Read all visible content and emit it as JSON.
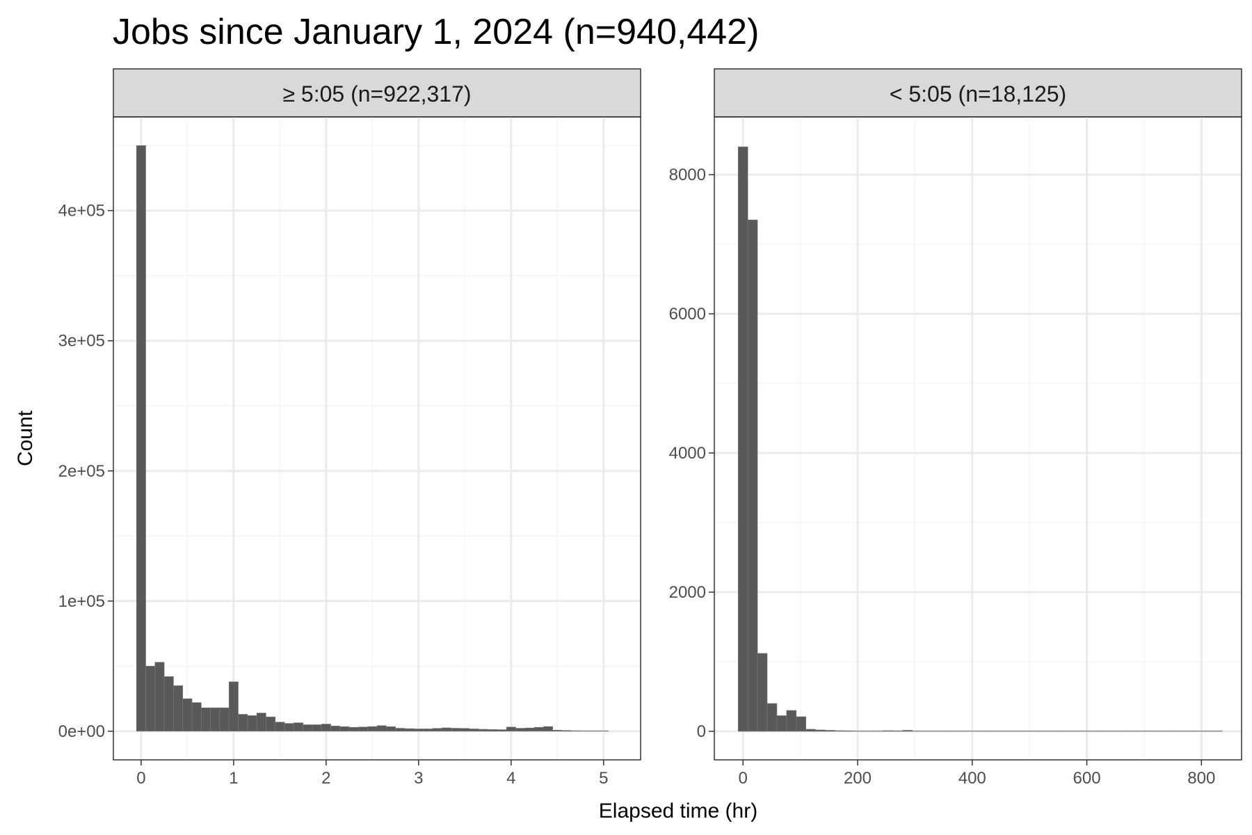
{
  "chart_data": {
    "type": "bar",
    "title": "Jobs since January 1, 2024 (n=940,442)",
    "xlabel": "Elapsed time (hr)",
    "ylabel": "Count",
    "grid": true,
    "panels": [
      {
        "strip": "≥ 5:05 (n=922,317)",
        "xlim": [
          -0.3,
          5.4
        ],
        "ylim": [
          -22000,
          472000
        ],
        "x_ticks": [
          0,
          1,
          2,
          3,
          4,
          5
        ],
        "x_tick_labels": [
          "0",
          "1",
          "2",
          "3",
          "4",
          "5"
        ],
        "y_ticks": [
          0,
          100000,
          200000,
          300000,
          400000
        ],
        "y_tick_labels": [
          "0e+00",
          "1e+05",
          "2e+05",
          "3e+05",
          "4e+05"
        ],
        "bin_width": 0.1,
        "bin_centers": [
          0.0,
          0.1,
          0.2,
          0.3,
          0.4,
          0.5,
          0.6,
          0.7,
          0.8,
          0.9,
          1.0,
          1.1,
          1.2,
          1.3,
          1.4,
          1.5,
          1.6,
          1.7,
          1.8,
          1.9,
          2.0,
          2.1,
          2.2,
          2.3,
          2.4,
          2.5,
          2.6,
          2.7,
          2.8,
          2.9,
          3.0,
          3.1,
          3.2,
          3.3,
          3.4,
          3.5,
          3.6,
          3.7,
          3.8,
          3.9,
          4.0,
          4.1,
          4.2,
          4.3,
          4.4,
          4.5,
          4.6,
          4.7,
          4.8,
          4.9,
          5.0
        ],
        "values": [
          450000,
          50000,
          53000,
          42000,
          35000,
          25000,
          22000,
          18000,
          18000,
          18000,
          38000,
          13000,
          12000,
          14000,
          11000,
          7000,
          6000,
          6500,
          5000,
          5000,
          5500,
          4000,
          3500,
          3000,
          3200,
          3600,
          4300,
          3500,
          2300,
          2000,
          1800,
          1800,
          2200,
          2600,
          2300,
          2200,
          1800,
          1500,
          1300,
          1200,
          3200,
          2300,
          2500,
          3000,
          3600,
          800,
          600,
          400,
          300,
          300,
          200
        ]
      },
      {
        "strip": "< 5:05 (n=18,125)",
        "xlim": [
          -50,
          870
        ],
        "ylim": [
          -410,
          8830
        ],
        "x_ticks": [
          0,
          200,
          400,
          600,
          800
        ],
        "x_tick_labels": [
          "0",
          "200",
          "400",
          "600",
          "800"
        ],
        "y_ticks": [
          0,
          2000,
          4000,
          6000,
          8000
        ],
        "y_tick_labels": [
          "0",
          "2000",
          "4000",
          "6000",
          "8000"
        ],
        "bin_width": 16.9,
        "bin_centers": [
          0,
          16.9,
          33.8,
          50.7,
          67.6,
          84.5,
          101.4,
          118.3,
          135.2,
          152.1,
          169,
          185.9,
          202.8,
          219.7,
          236.6,
          253.5,
          270.4,
          287.3,
          304.2,
          321.1,
          338,
          354.9,
          371.8,
          388.7,
          405.6,
          422.5,
          439.4,
          456.3,
          473.2,
          490.1,
          507,
          523.9,
          540.8,
          557.7,
          574.6,
          591.5,
          608.4,
          625.3,
          642.2,
          659.1,
          676,
          692.9,
          709.8,
          726.7,
          743.6,
          760.5,
          777.4,
          794.3,
          811.2,
          828.1
        ],
        "values": [
          8400,
          7350,
          1120,
          400,
          225,
          300,
          210,
          30,
          20,
          15,
          10,
          8,
          6,
          5,
          5,
          10,
          8,
          15,
          5,
          3,
          3,
          2,
          2,
          2,
          2,
          1,
          1,
          1,
          1,
          1,
          1,
          1,
          1,
          1,
          1,
          1,
          1,
          1,
          1,
          1,
          1,
          1,
          1,
          1,
          1,
          1,
          1,
          1,
          1,
          1
        ]
      }
    ],
    "colors": {
      "bar_fill": "#595959",
      "bar_stroke": "#7a7a7a",
      "panel_border": "#333333",
      "strip_fill": "#d9d9d9",
      "grid_major": "#ebebeb",
      "grid_minor": "#f5f5f5"
    }
  }
}
